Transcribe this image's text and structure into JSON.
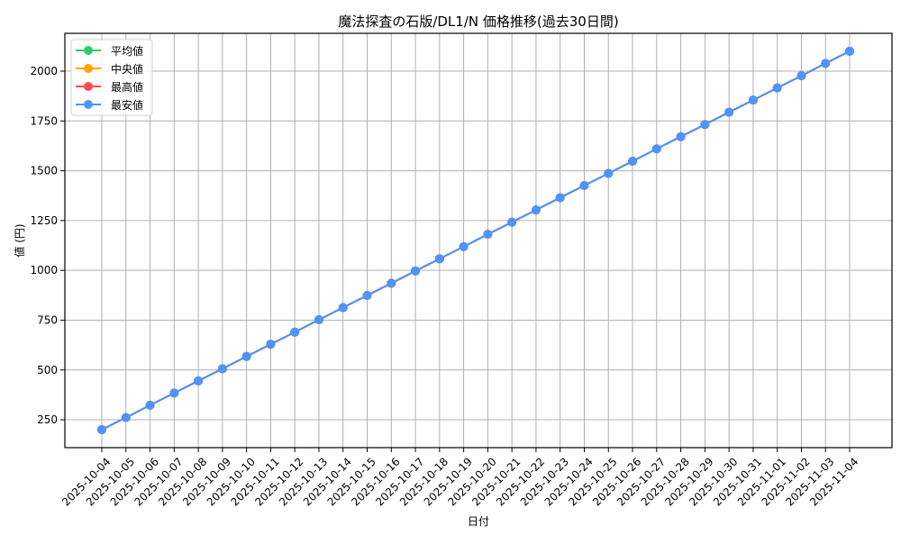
{
  "chart_data": {
    "type": "line",
    "title": "魔法探査の石版/DL1/N 価格推移(過去30日間)",
    "xlabel": "日付",
    "ylabel": "値 (円)",
    "categories": [
      "2025-10-04",
      "2025-10-05",
      "2025-10-06",
      "2025-10-07",
      "2025-10-08",
      "2025-10-09",
      "2025-10-10",
      "2025-10-11",
      "2025-10-12",
      "2025-10-13",
      "2025-10-14",
      "2025-10-15",
      "2025-10-16",
      "2025-10-17",
      "2025-10-18",
      "2025-10-19",
      "2025-10-20",
      "2025-10-21",
      "2025-10-22",
      "2025-10-23",
      "2025-10-24",
      "2025-10-25",
      "2025-10-26",
      "2025-10-27",
      "2025-10-28",
      "2025-10-29",
      "2025-10-30",
      "2025-10-31",
      "2025-11-01",
      "2025-11-02",
      "2025-11-03",
      "2025-11-04"
    ],
    "ylim": [
      110,
      2190
    ],
    "yticks": [
      250,
      500,
      750,
      1000,
      1250,
      1500,
      1750,
      2000
    ],
    "grid": true,
    "legend_position": "top-left",
    "series": [
      {
        "name": "平均値",
        "color": "#2ecc71",
        "values": [
          200,
          261,
          323,
          384,
          445,
          506,
          568,
          629,
          690,
          752,
          813,
          874,
          935,
          997,
          1058,
          1119,
          1181,
          1242,
          1303,
          1365,
          1426,
          1487,
          1548,
          1610,
          1671,
          1732,
          1794,
          1855,
          1916,
          1977,
          2039,
          2100
        ]
      },
      {
        "name": "中央値",
        "color": "#ffa500",
        "values": [
          200,
          261,
          323,
          384,
          445,
          506,
          568,
          629,
          690,
          752,
          813,
          874,
          935,
          997,
          1058,
          1119,
          1181,
          1242,
          1303,
          1365,
          1426,
          1487,
          1548,
          1610,
          1671,
          1732,
          1794,
          1855,
          1916,
          1977,
          2039,
          2100
        ]
      },
      {
        "name": "最高値",
        "color": "#ff4d4d",
        "values": [
          200,
          261,
          323,
          384,
          445,
          506,
          568,
          629,
          690,
          752,
          813,
          874,
          935,
          997,
          1058,
          1119,
          1181,
          1242,
          1303,
          1365,
          1426,
          1487,
          1548,
          1610,
          1671,
          1732,
          1794,
          1855,
          1916,
          1977,
          2039,
          2100
        ]
      },
      {
        "name": "最安値",
        "color": "#4d94ff",
        "values": [
          200,
          261,
          323,
          384,
          445,
          506,
          568,
          629,
          690,
          752,
          813,
          874,
          935,
          997,
          1058,
          1119,
          1181,
          1242,
          1303,
          1365,
          1426,
          1487,
          1548,
          1610,
          1671,
          1732,
          1794,
          1855,
          1916,
          1977,
          2039,
          2100
        ]
      }
    ]
  }
}
